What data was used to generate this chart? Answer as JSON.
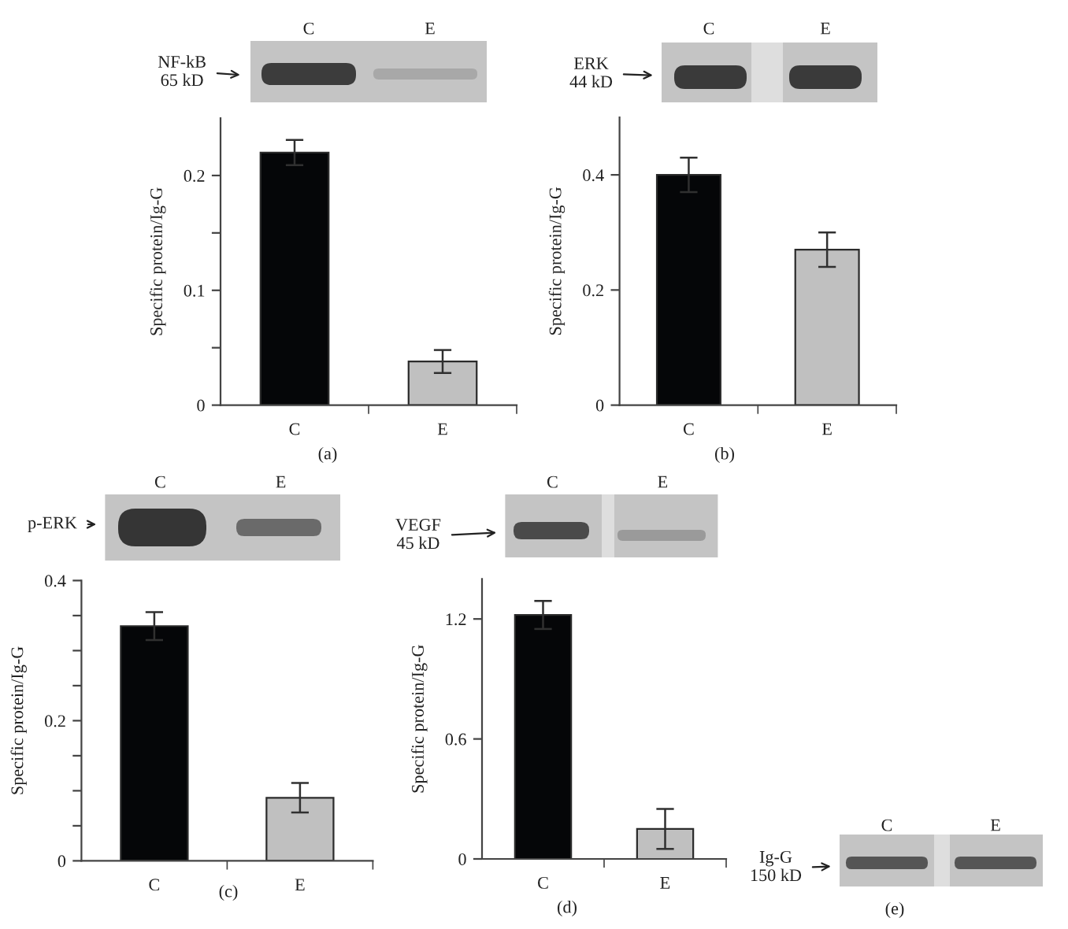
{
  "chart_data": [
    {
      "type": "bar",
      "categories": [
        "C",
        "E"
      ],
      "values": [
        0.22,
        0.038
      ],
      "colors": [
        "#050608",
        "#c0c0c0"
      ],
      "errors": [
        0.011,
        0.01
      ],
      "ylabel": "Specific protein/Ig-G",
      "ylim": [
        0,
        0.25
      ],
      "yticks": [
        0,
        {
          "value": 0.05,
          "label": null
        },
        0.1,
        {
          "value": 0.15,
          "label": null
        },
        0.2
      ],
      "annotations": [
        "C",
        "E",
        "NF-kB\n65 kD",
        "(a)"
      ]
    },
    {
      "type": "bar",
      "categories": [
        "C",
        "E"
      ],
      "values": [
        0.4,
        0.27
      ],
      "colors": [
        "#050608",
        "#c0c0c0"
      ],
      "errors": [
        0.03,
        0.03
      ],
      "ylabel": "Specific protein/Ig-G",
      "ylim": [
        0,
        0.5
      ],
      "yticks": [
        0,
        0.2,
        0.4
      ],
      "annotations": [
        "C",
        "E",
        "ERK\n44 kD",
        "(b)"
      ]
    },
    {
      "type": "bar",
      "categories": [
        "C",
        "E"
      ],
      "values": [
        0.335,
        0.09
      ],
      "colors": [
        "#050608",
        "#c0c0c0"
      ],
      "errors": [
        0.02,
        0.021
      ],
      "ylabel": "Specific protein/Ig-G",
      "ylim": [
        0,
        0.4
      ],
      "yticks": [
        0,
        {
          "value": 0.05,
          "label": null
        },
        {
          "value": 0.1,
          "label": null
        },
        {
          "value": 0.15,
          "label": null
        },
        0.2,
        {
          "value": 0.25,
          "label": null
        },
        {
          "value": 0.3,
          "label": null
        },
        {
          "value": 0.35,
          "label": null
        },
        0.4
      ],
      "annotations": [
        "C",
        "E",
        "p-ERK",
        "(c)"
      ]
    },
    {
      "type": "bar",
      "categories": [
        "C",
        "E"
      ],
      "values": [
        1.22,
        0.15
      ],
      "colors": [
        "#050608",
        "#c0c0c0"
      ],
      "errors": [
        0.07,
        0.1
      ],
      "ylabel": "Specific protein/Ig-G",
      "ylim": [
        0,
        1.4
      ],
      "yticks": [
        0,
        0.6,
        1.2
      ],
      "annotations": [
        "C",
        "E",
        "VEGF\n45 kD",
        "(d)"
      ]
    },
    {
      "type": "other",
      "annotations": [
        "C",
        "E",
        "Ig-G\n150 kD",
        "(e)"
      ]
    }
  ]
}
